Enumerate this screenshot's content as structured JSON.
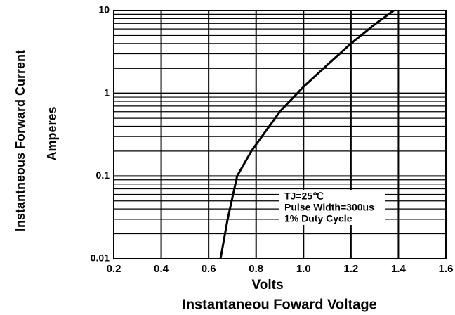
{
  "chart_data": {
    "type": "line",
    "xlabel": [
      "Volts",
      "Instantaneou Foward Voltage"
    ],
    "ylabel": [
      "Instantneous Forward Current",
      "Amperes"
    ],
    "annotation": [
      "TJ=25℃",
      "Pulse Width=300us",
      "1% Duty Cycle"
    ],
    "series": [
      {
        "color": "#000000",
        "x": [
          0.65,
          0.68,
          0.72,
          0.78,
          0.9,
          1.0,
          1.1,
          1.2,
          1.3,
          1.38
        ],
        "values": [
          0.01,
          0.03,
          0.1,
          0.2,
          0.6,
          1.2,
          2.2,
          4,
          6.8,
          10
        ]
      }
    ],
    "xlim": [
      0.2,
      1.6
    ],
    "xticks": [
      {
        "value": 0.2,
        "label": "0.2"
      },
      {
        "value": 0.4,
        "label": "0.4"
      },
      {
        "value": 0.6,
        "label": "0.6"
      },
      {
        "value": 0.8,
        "label": "0.8"
      },
      {
        "value": 1.0,
        "label": "1.0"
      },
      {
        "value": 1.2,
        "label": "1.2"
      },
      {
        "value": 1.4,
        "label": "1.4"
      },
      {
        "value": 1.6,
        "label": "1.6"
      }
    ],
    "ylim": [
      0.01,
      10
    ],
    "yticks": [
      0.01,
      0.1,
      1,
      10
    ],
    "log_y": true,
    "grid": true,
    "minor_grid": true
  }
}
